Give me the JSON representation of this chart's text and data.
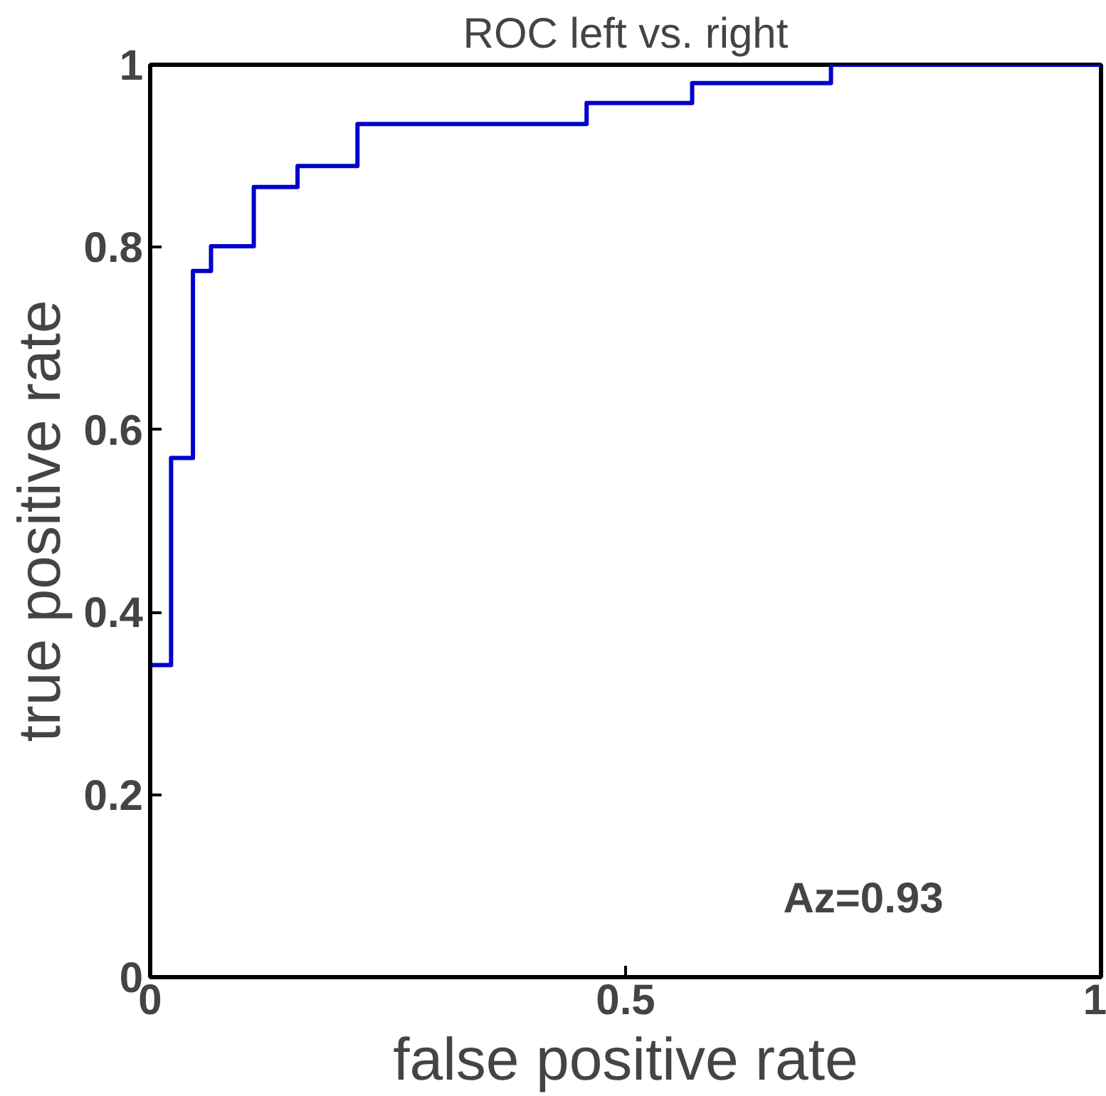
{
  "chart_data": {
    "type": "step",
    "title": "ROC left vs. right",
    "xlabel": "false positive rate",
    "ylabel": "true positive rate",
    "x": [
      0,
      0,
      0.022,
      0.045,
      0.064,
      0.109,
      0.155,
      0.218,
      0.459,
      0.57,
      0.716,
      1.0
    ],
    "series": [
      {
        "color": "#0000cc",
        "values": [
          0,
          0.342,
          0.569,
          0.774,
          0.801,
          0.866,
          0.889,
          0.935,
          0.958,
          0.98,
          1.0,
          1.0
        ]
      }
    ],
    "xlim": [
      0,
      1
    ],
    "ylim": [
      0,
      1
    ],
    "xticks": [
      0,
      0.5,
      1
    ],
    "yticks": [
      0,
      0.2,
      0.4,
      0.6,
      0.8,
      1
    ],
    "grid": false,
    "marker": "none",
    "line_style": "solid",
    "annotations": [
      "Az=0.93"
    ]
  }
}
